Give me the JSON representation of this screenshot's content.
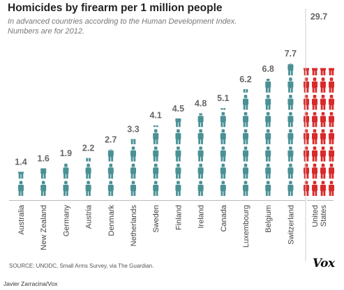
{
  "title": "Homicides by firearm per 1 million people",
  "subtitle_line1": "In advanced countries according to the Human Development Index.",
  "subtitle_line2": "Numbers are for 2012.",
  "source": "SOURCE: UNODC, Small Arms Survey, via The Guardian.",
  "credit": "Javier Zarracina/Vox",
  "logo": "Vox",
  "colors": {
    "teal": "#4a9196",
    "red": "#d92a2a",
    "label": "#666666"
  },
  "icon": "person-icon",
  "chart_data": {
    "type": "bar",
    "categories": [
      "Australia",
      "New Zealand",
      "Germany",
      "Austria",
      "Denmark",
      "Netherlands",
      "Sweden",
      "Finland",
      "Ireland",
      "Canada",
      "Luxembourg",
      "Belgium",
      "Switzerland",
      "United States"
    ],
    "values": [
      1.4,
      1.6,
      1.9,
      2.2,
      2.7,
      3.3,
      4.1,
      4.5,
      4.8,
      5.1,
      6.2,
      6.8,
      7.7,
      29.7
    ],
    "value_labels": [
      "1.4",
      "1.6",
      "1.9",
      "2.2",
      "2.7",
      "3.3",
      "4.1",
      "4.5",
      "4.8",
      "5.1",
      "6.2",
      "6.8",
      "7.7",
      "29.7"
    ],
    "category_label_lines": [
      [
        "Australia"
      ],
      [
        "New Zealand"
      ],
      [
        "Germany"
      ],
      [
        "Austria"
      ],
      [
        "Denmark"
      ],
      [
        "Netherlands"
      ],
      [
        "Sweden"
      ],
      [
        "Finland"
      ],
      [
        "Ireland"
      ],
      [
        "Canada"
      ],
      [
        "Luxembourg"
      ],
      [
        "Belgium"
      ],
      [
        "Switzerland"
      ],
      [
        "United",
        "States"
      ]
    ],
    "highlight_category": "United States",
    "mark": "stacked person icons (one icon per homicide per million)",
    "title": "Homicides by firearm per 1 million people",
    "xlabel": "",
    "ylabel": ""
  }
}
